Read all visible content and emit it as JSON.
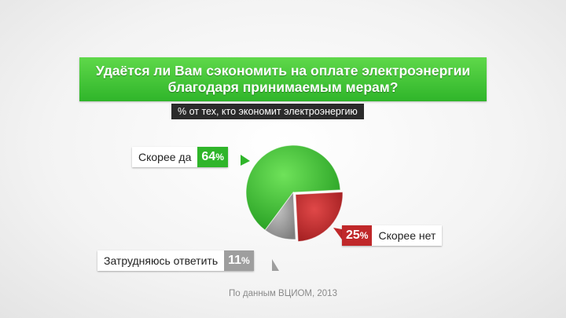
{
  "chart_data": {
    "type": "pie",
    "title": "Удаётся ли Вам сэкономить на оплате электроэнергии благодаря принимаемым мерам?",
    "subtitle": "% от тех, кто экономит электроэнергию",
    "slices": [
      {
        "label": "Скорее да",
        "value": 64,
        "value_text": "64",
        "color": "#2fb52a"
      },
      {
        "label": "Скорее нет",
        "value": 25,
        "value_text": "25",
        "color": "#c0282a"
      },
      {
        "label": "Затрудняюсь ответить",
        "value": 11,
        "value_text": "11",
        "color": "#9e9e9e"
      }
    ],
    "percent_sign": "%",
    "source": "По данным ВЦИОМ, 2013"
  }
}
